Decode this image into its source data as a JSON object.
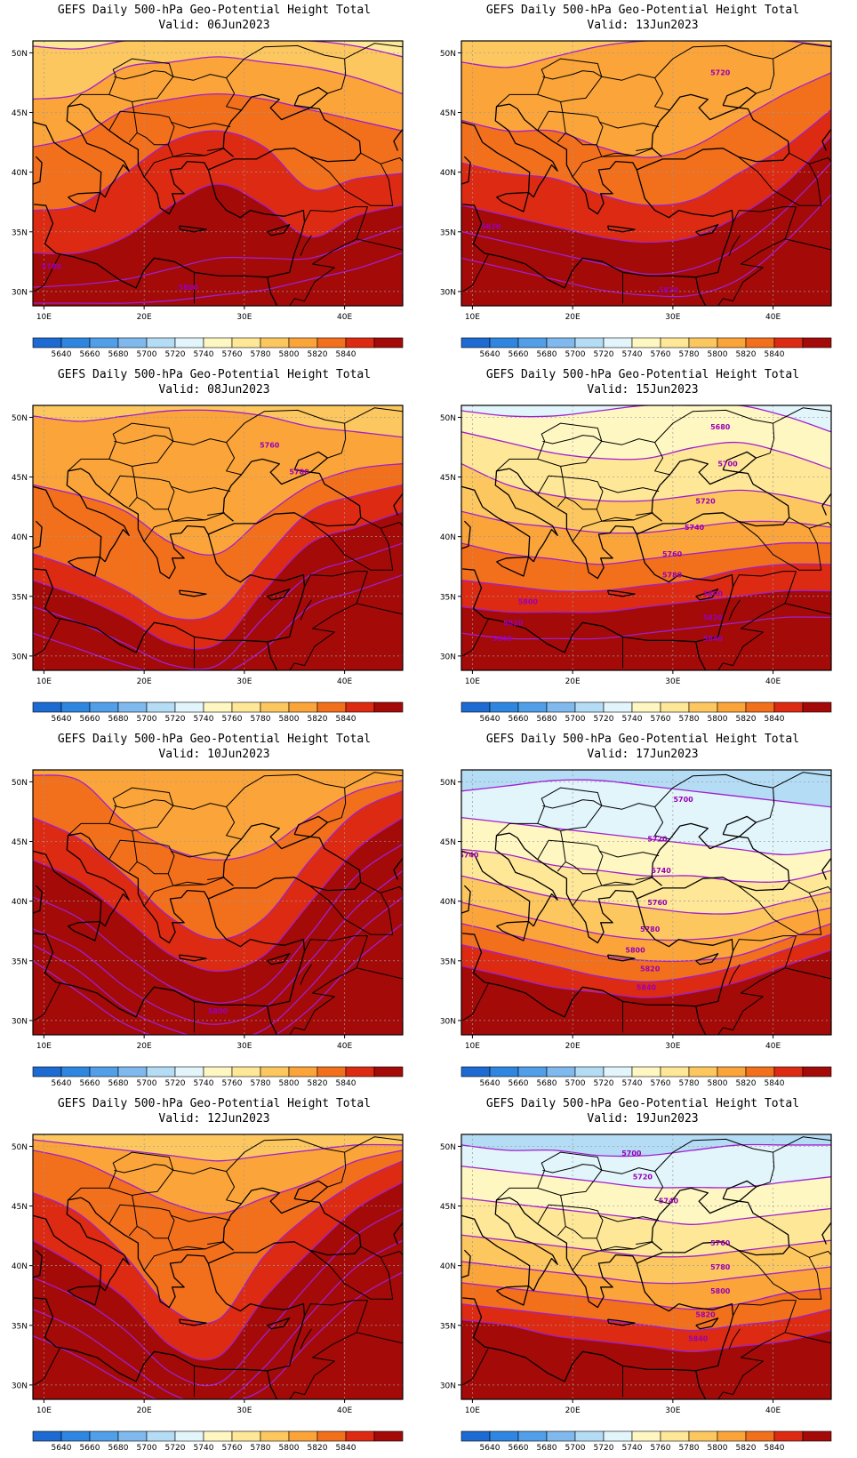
{
  "panel_title": "GEFS Daily 500-hPa Geo-Potential Height Total",
  "valid_prefix": "Valid:",
  "lat_labels": [
    "30N",
    "35N",
    "40N",
    "45N",
    "50N"
  ],
  "lon_labels": [
    "10E",
    "20E",
    "30E",
    "40E"
  ],
  "colorbar": {
    "labels": [
      "5640",
      "5660",
      "5680",
      "5700",
      "5720",
      "5740",
      "5760",
      "5780",
      "5800",
      "5820",
      "5840"
    ],
    "colors": [
      "#1d6ad2",
      "#2e86e0",
      "#509fe8",
      "#7fb9ee",
      "#b4dcf5",
      "#e1f5fb",
      "#fff7c2",
      "#fee797",
      "#fdc760",
      "#fba43a",
      "#f26f1c",
      "#dd2a12",
      "#a30a08"
    ]
  },
  "contour_color": "#a020d0",
  "panels": [
    {
      "valid": "06Jun2023",
      "contour_labels": [
        "5780",
        "5800"
      ]
    },
    {
      "valid": "13Jun2023",
      "contour_labels": [
        "5720",
        "5820",
        "5820"
      ]
    },
    {
      "valid": "08Jun2023",
      "contour_labels": [
        "5760",
        "5780"
      ]
    },
    {
      "valid": "15Jun2023",
      "contour_labels": [
        "5680",
        "5700",
        "5720",
        "5740",
        "5760",
        "5780",
        "5800",
        "5800",
        "5820",
        "5820",
        "5840",
        "5840"
      ]
    },
    {
      "valid": "10Jun2023",
      "contour_labels": [
        "5800"
      ]
    },
    {
      "valid": "17Jun2023",
      "contour_labels": [
        "5700",
        "5720",
        "5740",
        "5740",
        "5760",
        "5780",
        "5800",
        "5820",
        "5840"
      ]
    },
    {
      "valid": "12Jun2023",
      "contour_labels": []
    },
    {
      "valid": "19Jun2023",
      "contour_labels": [
        "5700",
        "5720",
        "5740",
        "5760",
        "5780",
        "5800",
        "5820",
        "5840"
      ]
    }
  ]
}
